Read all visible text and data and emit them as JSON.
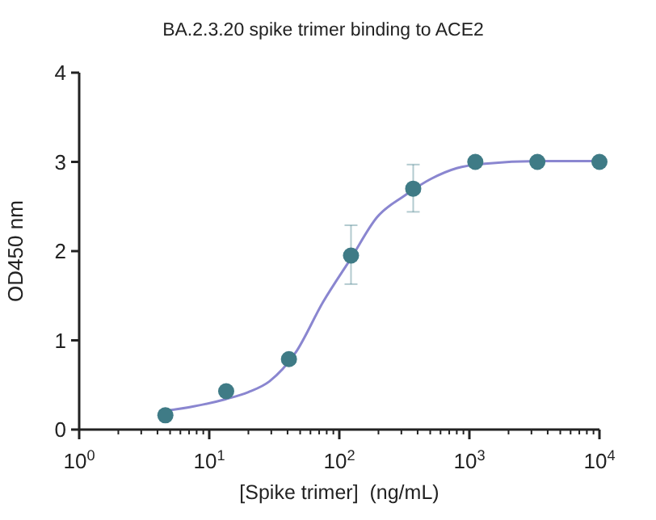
{
  "chart_data": {
    "type": "scatter",
    "title": "BA.2.3.20 spike trimer binding to ACE2",
    "xlabel": "[Spike trimer]  (ng/mL)",
    "ylabel": "OD450 nm",
    "log": "x",
    "xlim": [
      1,
      10000
    ],
    "xticks": [
      {
        "value": 1,
        "label": "10$^{0}$"
      },
      {
        "value": 10,
        "label": "10$^{1}$"
      },
      {
        "value": 100,
        "label": "10$^{2}$"
      },
      {
        "value": 1000,
        "label": "10$^{3}$"
      },
      {
        "value": 10000,
        "label": "10$^{4}$"
      }
    ],
    "ylim": [
      0,
      4
    ],
    "yticks": [
      0,
      1,
      2,
      3,
      4
    ],
    "grid": false,
    "marker": "circle",
    "series": [
      {
        "type": "line",
        "color": "#8a86d0",
        "marker": "none",
        "x": [
          4.6,
          7.6,
          13.3,
          20,
          29,
          46,
          75,
          123,
          195,
          316,
          507,
          800,
          1318,
          3400,
          10000
        ],
        "values": [
          0.21,
          0.26,
          0.34,
          0.42,
          0.54,
          0.86,
          1.43,
          1.92,
          2.38,
          2.62,
          2.81,
          2.93,
          2.98,
          3.01,
          3.01
        ]
      },
      {
        "color": "#3f7b86",
        "x": [
          4.6,
          13.5,
          41,
          123,
          370,
          1111,
          3333,
          10000
        ],
        "values": [
          0.16,
          0.43,
          0.79,
          1.95,
          2.7,
          3.0,
          3.0,
          3.0
        ],
        "errors": [
          null,
          null,
          null,
          [
            1.63,
            2.29
          ],
          [
            2.44,
            2.97
          ],
          null,
          null,
          null
        ]
      }
    ]
  }
}
